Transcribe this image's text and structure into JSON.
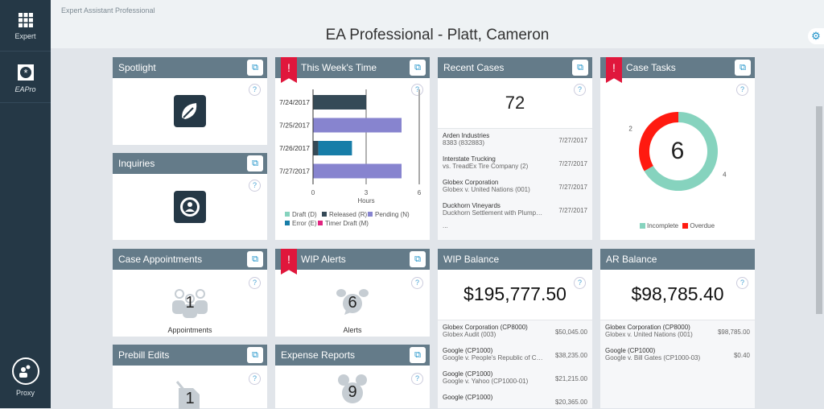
{
  "sidebar": {
    "items": [
      {
        "label": "Expert",
        "icon": "grid-icon"
      },
      {
        "label": "EAPro",
        "icon": "eapro-logo-icon"
      },
      {
        "label": "Proxy",
        "icon": "proxy-users-icon"
      }
    ]
  },
  "header": {
    "app_name": "Expert Assistant Professional",
    "title": "EA Professional - Platt, Cameron",
    "settings_icon": "gear-icon"
  },
  "colors": {
    "sidebar": "#253846",
    "card_header": "#647b89",
    "alert_flag": "#e0173c",
    "draft": "#86d3be",
    "released": "#354a57",
    "pending": "#8784cf",
    "error": "#177da8",
    "timer_draft": "#e0237f",
    "incomplete": "#86d3be",
    "overdue": "#ff1a10"
  },
  "cards": {
    "spotlight": {
      "title": "Spotlight"
    },
    "inquiries": {
      "title": "Inquiries"
    },
    "this_weeks_time": {
      "title": "This Week's Time",
      "alert": "!"
    },
    "recent_cases": {
      "title": "Recent Cases",
      "count": "72",
      "items": [
        {
          "name": "Arden Industries",
          "detail": "8383 (832883)",
          "date": "7/27/2017"
        },
        {
          "name": "Interstate Trucking",
          "detail": "vs. TreadEx Tire Company (2)",
          "date": "7/27/2017"
        },
        {
          "name": "Globex Corporation",
          "detail": "Globex v. United Nations (001)",
          "date": "7/27/2017"
        },
        {
          "name": "Duckhorn Vineyards",
          "detail": "Duckhorn Settlement with Plumpjack",
          "date": "7/27/2017"
        }
      ],
      "more": "..."
    },
    "case_tasks": {
      "title": "Case Tasks",
      "alert": "!",
      "total": "6"
    },
    "case_appointments": {
      "title": "Case Appointments",
      "count": "1",
      "label": "Appointments"
    },
    "wip_alerts": {
      "title": "WIP Alerts",
      "alert": "!",
      "count": "6",
      "label": "Alerts"
    },
    "wip_balance": {
      "title": "WIP Balance",
      "total": "$195,777.50",
      "items": [
        {
          "name": "Globex Corporation (CP8000)",
          "detail": "Globex Audit (003)",
          "amount": "$50,045.00"
        },
        {
          "name": "Google (CP1000)",
          "detail": "Google v. People's Republic of China",
          "amount": "$38,235.00"
        },
        {
          "name": "Google (CP1000)",
          "detail": "Google v. Yahoo (CP1000-01)",
          "amount": "$21,215.00"
        },
        {
          "name": "Google (CP1000)",
          "detail": "",
          "amount": "$20,365.00"
        }
      ]
    },
    "ar_balance": {
      "title": "AR Balance",
      "total": "$98,785.40",
      "items": [
        {
          "name": "Globex Corporation (CP8000)",
          "detail": "Globex v. United Nations (001)",
          "amount": "$98,785.00"
        },
        {
          "name": "Google (CP1000)",
          "detail": "Google v. Bill Gates (CP1000-03)",
          "amount": "$0.40"
        }
      ]
    },
    "prebill_edits": {
      "title": "Prebill Edits",
      "count": "1"
    },
    "expense_reports": {
      "title": "Expense Reports",
      "count": "9"
    }
  },
  "chart_data": [
    {
      "type": "bar",
      "orientation": "horizontal",
      "stacked": true,
      "categories": [
        "7/24/2017",
        "7/25/2017",
        "7/26/2017",
        "7/27/2017"
      ],
      "series": [
        {
          "name": "Draft (D)",
          "values": [
            0,
            0,
            0,
            0
          ]
        },
        {
          "name": "Released (R)",
          "values": [
            3,
            0,
            0.3,
            0
          ]
        },
        {
          "name": "Pending (N)",
          "values": [
            0,
            5,
            0,
            5
          ]
        },
        {
          "name": "Error (E)",
          "values": [
            0,
            0,
            1.9,
            0
          ]
        },
        {
          "name": "Timer Draft (M)",
          "values": [
            0,
            0,
            0,
            0
          ]
        }
      ],
      "xlabel": "Hours",
      "xlim": [
        0,
        6
      ],
      "xticks": [
        0,
        3,
        6
      ],
      "legend": "bottom"
    },
    {
      "type": "pie",
      "donut": true,
      "categories": [
        "Incomplete",
        "Overdue"
      ],
      "values": [
        4,
        2
      ],
      "center_label": "6",
      "legend": "bottom"
    }
  ]
}
